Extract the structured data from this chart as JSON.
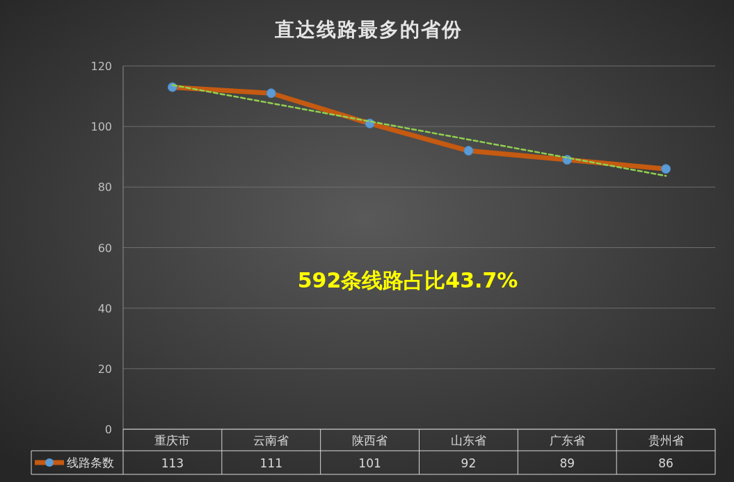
{
  "chart_data": {
    "type": "line",
    "title": "直达线路最多的省份",
    "categories": [
      "重庆市",
      "云南省",
      "陕西省",
      "山东省",
      "广东省",
      "贵州省"
    ],
    "series": [
      {
        "name": "线路条数",
        "color": "#c55a11",
        "values": [
          113,
          111,
          101,
          92,
          89,
          86
        ],
        "value_labels": [
          "113",
          "111",
          "101",
          "92",
          "89",
          "86"
        ],
        "marker": "circle"
      },
      {
        "type": "line",
        "x": [
          "重庆市",
          "贵州省"
        ],
        "values": [
          113.7,
          83.7
        ],
        "color": "#92d050",
        "line_style": "dashed",
        "marker": "none"
      }
    ],
    "annotations": [
      "592条线路占比43.7%"
    ],
    "ylim": [
      0,
      120
    ],
    "yticks": [
      0,
      20,
      40,
      60,
      80,
      100,
      120
    ],
    "grid": "y",
    "legend": "bottom"
  }
}
